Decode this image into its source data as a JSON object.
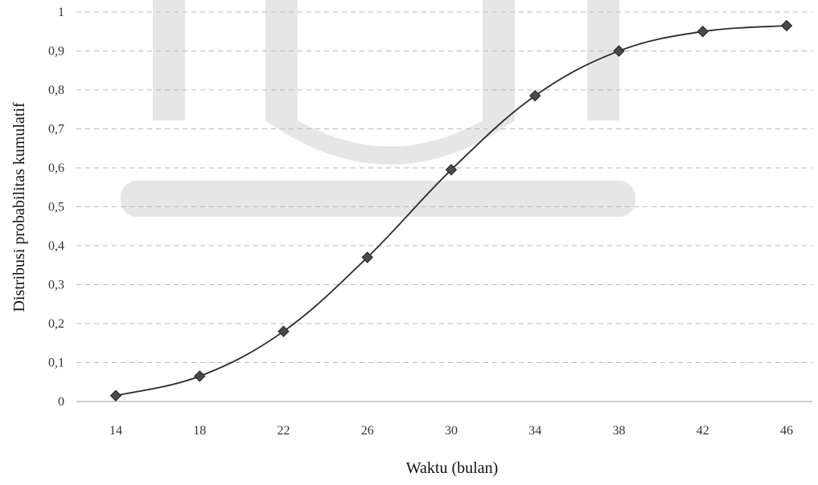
{
  "chart_data": {
    "type": "line",
    "title": "",
    "xlabel": "Waktu (bulan)",
    "ylabel": "Distribusi probabilitas kumulatif",
    "categories": [
      "14",
      "18",
      "22",
      "26",
      "30",
      "34",
      "38",
      "42",
      "46"
    ],
    "x": [
      14,
      18,
      22,
      26,
      30,
      34,
      38,
      42,
      46
    ],
    "series": [
      {
        "values": [
          0.015,
          0.065,
          0.18,
          0.37,
          0.595,
          0.785,
          0.9,
          0.95,
          0.965
        ]
      }
    ],
    "y_ticks": [
      "0",
      "0,1",
      "0,2",
      "0,3",
      "0,4",
      "0,5",
      "0,6",
      "0,7",
      "0,8",
      "0,9",
      "1"
    ],
    "ylim": [
      0,
      1
    ],
    "grid": true,
    "legend": "none",
    "colors": {
      "line": "#2b2b2b",
      "marker": "#4a4a4a",
      "grid": "#b8b8b8"
    }
  }
}
